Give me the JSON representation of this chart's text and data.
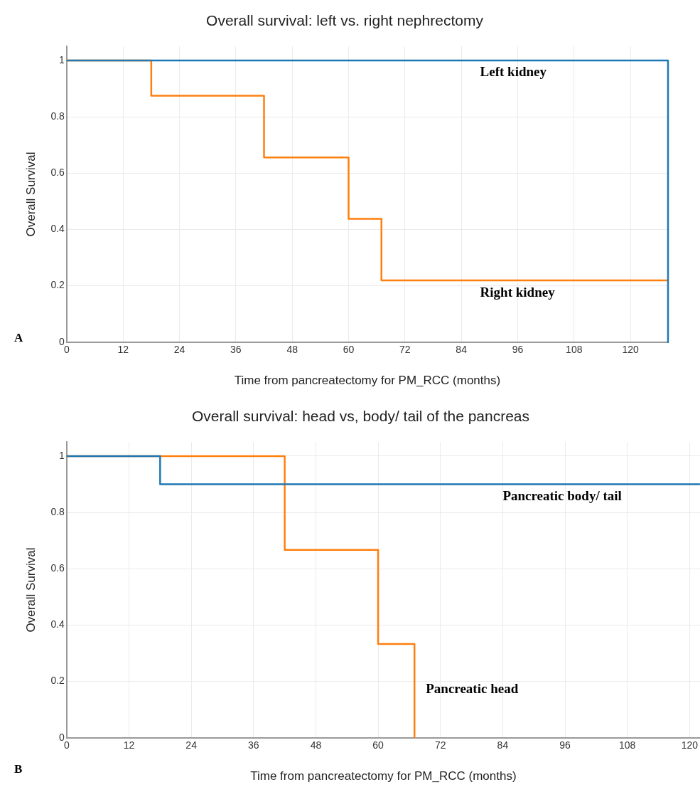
{
  "chart_data": [
    {
      "type": "step",
      "title": "Overall survival: left vs. right nephrectomy",
      "xlabel": "Time from pancreatectomy for PM_RCC (months)",
      "ylabel": "Overall Survival",
      "xlim": [
        0,
        128
      ],
      "xticks": [
        0,
        12,
        24,
        36,
        48,
        60,
        72,
        84,
        96,
        108,
        120
      ],
      "ylim": [
        0,
        1.05
      ],
      "yticks": [
        0,
        0.2,
        0.4,
        0.6,
        0.8,
        1
      ],
      "grid": true,
      "series": [
        {
          "type": "line",
          "color": "#1f77b4",
          "x": [
            0,
            128,
            128
          ],
          "values": [
            1,
            1,
            0
          ]
        },
        {
          "color": "#ff7f0e",
          "x": [
            0,
            18,
            42,
            60,
            67,
            128
          ],
          "values": [
            1,
            0.875,
            0.656,
            0.438,
            0.219,
            0.219
          ]
        }
      ],
      "annotations": [
        {
          "text": "Left kidney",
          "x": 88,
          "y": 1
        },
        {
          "text": "Right kidney",
          "x": 88,
          "y": 0.219
        },
        "A"
      ]
    },
    {
      "type": "step",
      "title": "Overall survival: head vs, body/ tail of the pancreas",
      "xlabel": "Time from pancreatectomy for PM_RCC (months)",
      "ylabel": "Overall Survival",
      "xlim": [
        0,
        122
      ],
      "xticks": [
        0,
        12,
        24,
        36,
        48,
        60,
        72,
        84,
        96,
        108,
        120
      ],
      "ylim": [
        0,
        1.05
      ],
      "yticks": [
        0,
        0.2,
        0.4,
        0.6,
        0.8,
        1
      ],
      "grid": true,
      "series": [
        {
          "color": "#1f77b4",
          "x": [
            0,
            18,
            122
          ],
          "values": [
            1,
            0.9,
            0.9
          ]
        },
        {
          "color": "#ff7f0e",
          "x": [
            0,
            42,
            60,
            67
          ],
          "values": [
            1,
            0.667,
            0.333,
            0
          ]
        }
      ],
      "annotations": [
        {
          "text": "Pancreatic body/ tail",
          "x": 84,
          "y": 0.9
        },
        {
          "text": "Pancreatic head",
          "x": 67,
          "y": 0.17
        },
        "B"
      ]
    }
  ]
}
